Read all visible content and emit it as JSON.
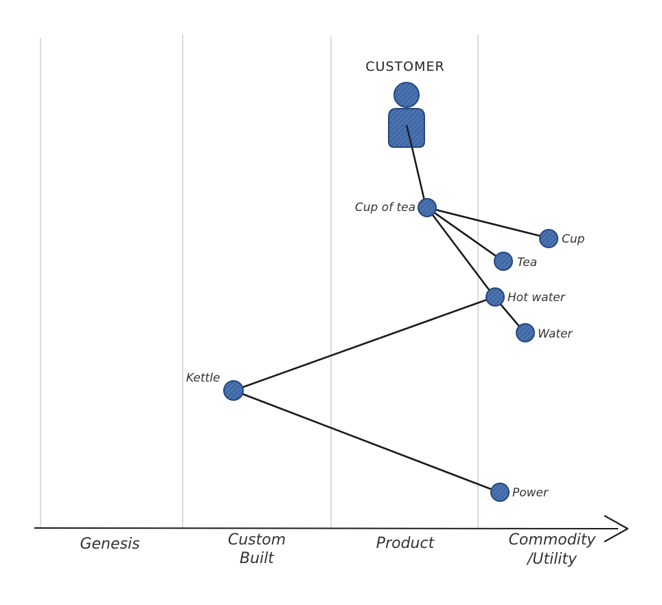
{
  "diagram": {
    "customer_label": "CUSTOMER",
    "stages": [
      {
        "id": "genesis",
        "lines": [
          "Genesis"
        ]
      },
      {
        "id": "custom",
        "lines": [
          "Custom",
          "Built"
        ]
      },
      {
        "id": "product",
        "lines": [
          "Product"
        ]
      },
      {
        "id": "commodity",
        "lines": [
          "Commodity",
          "/Utility"
        ]
      }
    ],
    "nodes": [
      {
        "id": "cup-of-tea",
        "label": "Cup of tea"
      },
      {
        "id": "cup",
        "label": "Cup"
      },
      {
        "id": "tea",
        "label": "Tea"
      },
      {
        "id": "hot-water",
        "label": "Hot water"
      },
      {
        "id": "water",
        "label": "Water"
      },
      {
        "id": "kettle",
        "label": "Kettle"
      },
      {
        "id": "power",
        "label": "Power"
      }
    ],
    "colors": {
      "node_fill": "#3d66a4",
      "node_stroke": "#24467e",
      "link": "#1a1a1a",
      "grid": "#cfcfcf",
      "axis": "#1a1a1a"
    }
  }
}
